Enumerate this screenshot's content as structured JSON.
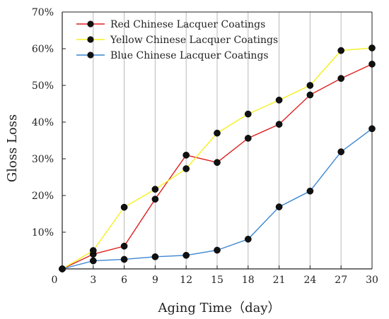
{
  "chart_data": {
    "type": "line",
    "title": "",
    "xlabel": "Aging Time（day）",
    "ylabel": "Gloss Loss",
    "x_origin_label": "0",
    "x": [
      0,
      3,
      6,
      9,
      12,
      15,
      18,
      21,
      24,
      27,
      30
    ],
    "x_tick_labels": [
      "3",
      "6",
      "9",
      "12",
      "15",
      "18",
      "21",
      "24",
      "27",
      "30"
    ],
    "xlim": [
      0,
      30
    ],
    "ylim": [
      0,
      70
    ],
    "y_ticks": [
      10,
      20,
      30,
      40,
      50,
      60,
      70
    ],
    "y_tick_labels": [
      "10%",
      "20%",
      "30%",
      "40%",
      "50%",
      "60%",
      "70%"
    ],
    "grid": "vertical",
    "legend_position": "top-left",
    "series": [
      {
        "name": "Red Chinese Lacquer Coatings",
        "color": "#e02020",
        "values": [
          0,
          4,
          6.2,
          19,
          31,
          29,
          35.6,
          39.4,
          47.4,
          51.9,
          55.8
        ]
      },
      {
        "name": "Yellow Chinese Lacquer Coatings",
        "color": "#f5f020",
        "values": [
          0,
          5,
          16.8,
          21.7,
          27.3,
          37,
          42.2,
          46,
          50,
          59.5,
          60.2
        ]
      },
      {
        "name": "Blue Chinese Lacquer Coatings",
        "color": "#3a86d0",
        "values": [
          0,
          2.2,
          2.6,
          3.3,
          3.7,
          5.1,
          8.1,
          16.9,
          21.2,
          31.9,
          38.2
        ]
      }
    ]
  }
}
